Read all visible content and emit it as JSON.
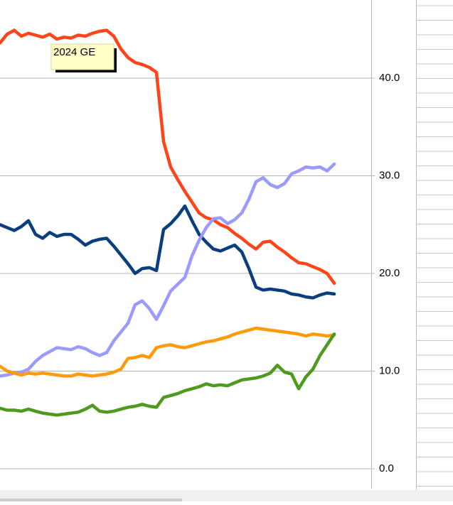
{
  "chart_data": {
    "type": "line",
    "annotation": "2024 GE",
    "ylim": [
      0,
      48
    ],
    "yticks": [
      {
        "value": 0,
        "label": "0.0"
      },
      {
        "value": 10,
        "label": "10.0"
      },
      {
        "value": 20,
        "label": "20.0"
      },
      {
        "value": 30,
        "label": "30.0"
      },
      {
        "value": 40,
        "label": "40.0"
      }
    ],
    "grid": true,
    "series": [
      {
        "color": "#ff4419",
        "values": [
          43.6,
          44.5,
          44.9,
          44.3,
          44.6,
          44.4,
          44.2,
          44.5,
          44.0,
          44.2,
          44.1,
          44.4,
          44.3,
          44.6,
          44.8,
          44.9,
          44.3,
          43.0,
          42.1,
          41.6,
          41.4,
          41.1,
          40.6,
          33.5,
          30.9,
          29.6,
          28.4,
          27.3,
          26.2,
          25.7,
          25.5,
          25.0,
          24.7,
          24.1,
          23.6,
          23.0,
          22.5,
          23.2,
          23.3,
          22.7,
          22.2,
          21.6,
          21.1,
          21.0,
          20.7,
          20.4,
          20.0,
          19.0
        ]
      },
      {
        "color": "#0b3e7e",
        "values": [
          25.0,
          24.7,
          24.4,
          24.8,
          25.4,
          24.0,
          23.6,
          24.2,
          23.8,
          24.0,
          24.0,
          23.5,
          22.9,
          23.3,
          23.5,
          23.6,
          22.8,
          21.9,
          21.0,
          20.0,
          20.5,
          20.6,
          20.3,
          24.5,
          25.1,
          25.9,
          26.9,
          25.4,
          24.0,
          23.2,
          22.5,
          22.3,
          22.6,
          22.9,
          22.2,
          20.5,
          18.6,
          18.3,
          18.4,
          18.3,
          18.2,
          17.9,
          17.8,
          17.6,
          17.5,
          17.8,
          18.0,
          17.9
        ]
      },
      {
        "color": "#9b9bff",
        "values": [
          9.5,
          9.6,
          9.8,
          9.9,
          10.2,
          11.0,
          11.6,
          12.0,
          12.4,
          12.3,
          12.2,
          12.5,
          12.3,
          11.9,
          11.6,
          11.9,
          13.1,
          14.0,
          14.9,
          16.8,
          17.2,
          16.4,
          15.3,
          16.7,
          18.2,
          18.9,
          19.6,
          21.8,
          23.4,
          24.7,
          25.6,
          25.7,
          25.1,
          25.5,
          26.2,
          27.6,
          29.4,
          29.8,
          29.1,
          28.8,
          29.2,
          30.2,
          30.5,
          30.9,
          30.8,
          30.9,
          30.5,
          31.2
        ]
      },
      {
        "color": "#ff9a0d",
        "values": [
          10.5,
          10.0,
          9.8,
          9.6,
          9.8,
          9.7,
          9.8,
          9.7,
          9.6,
          9.5,
          9.5,
          9.7,
          9.6,
          9.5,
          9.6,
          9.7,
          9.9,
          10.2,
          11.3,
          11.4,
          11.6,
          11.4,
          12.4,
          12.6,
          12.7,
          12.5,
          12.4,
          12.6,
          12.8,
          13.0,
          13.1,
          13.3,
          13.5,
          13.8,
          14.0,
          14.2,
          14.4,
          14.3,
          14.2,
          14.1,
          14.0,
          13.9,
          13.8,
          13.6,
          13.8,
          13.7,
          13.6,
          13.7
        ]
      },
      {
        "color": "#4e9a1c",
        "values": [
          6.2,
          6.0,
          6.0,
          5.9,
          6.1,
          5.9,
          5.7,
          5.6,
          5.5,
          5.6,
          5.7,
          5.8,
          6.1,
          6.5,
          5.9,
          5.8,
          5.9,
          6.1,
          6.3,
          6.4,
          6.6,
          6.4,
          6.3,
          7.3,
          7.5,
          7.7,
          8.0,
          8.2,
          8.4,
          8.7,
          8.5,
          8.6,
          8.5,
          8.8,
          9.1,
          9.2,
          9.3,
          9.5,
          9.8,
          10.6,
          9.9,
          9.7,
          8.2,
          9.4,
          10.2,
          11.6,
          12.7,
          13.8
        ]
      }
    ]
  }
}
